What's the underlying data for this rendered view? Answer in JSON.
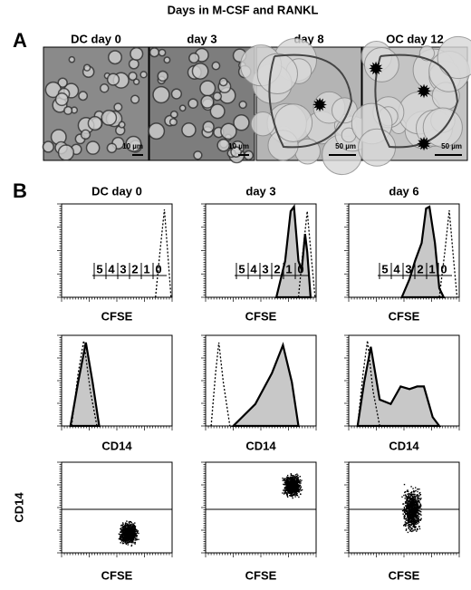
{
  "title": "Days in M-CSF and RANKL",
  "panel_a": {
    "label": "A",
    "columns": [
      {
        "title": "DC day 0",
        "scale_bar": "10 µm"
      },
      {
        "title": "day 3",
        "scale_bar": "10 µm"
      },
      {
        "title": "day 8",
        "scale_bar": "50 µm"
      },
      {
        "title": "OC day 12",
        "scale_bar": "50 µm"
      }
    ]
  },
  "panel_b": {
    "label": "B",
    "columns": [
      "DC day 0",
      "day 3",
      "day 6"
    ],
    "division_labels": [
      "5",
      "4",
      "3",
      "2",
      "1",
      "0"
    ],
    "row_axis_labels": [
      "CFSE",
      "CD14",
      "CFSE"
    ],
    "dot_plot_y_label": "CD14"
  }
}
